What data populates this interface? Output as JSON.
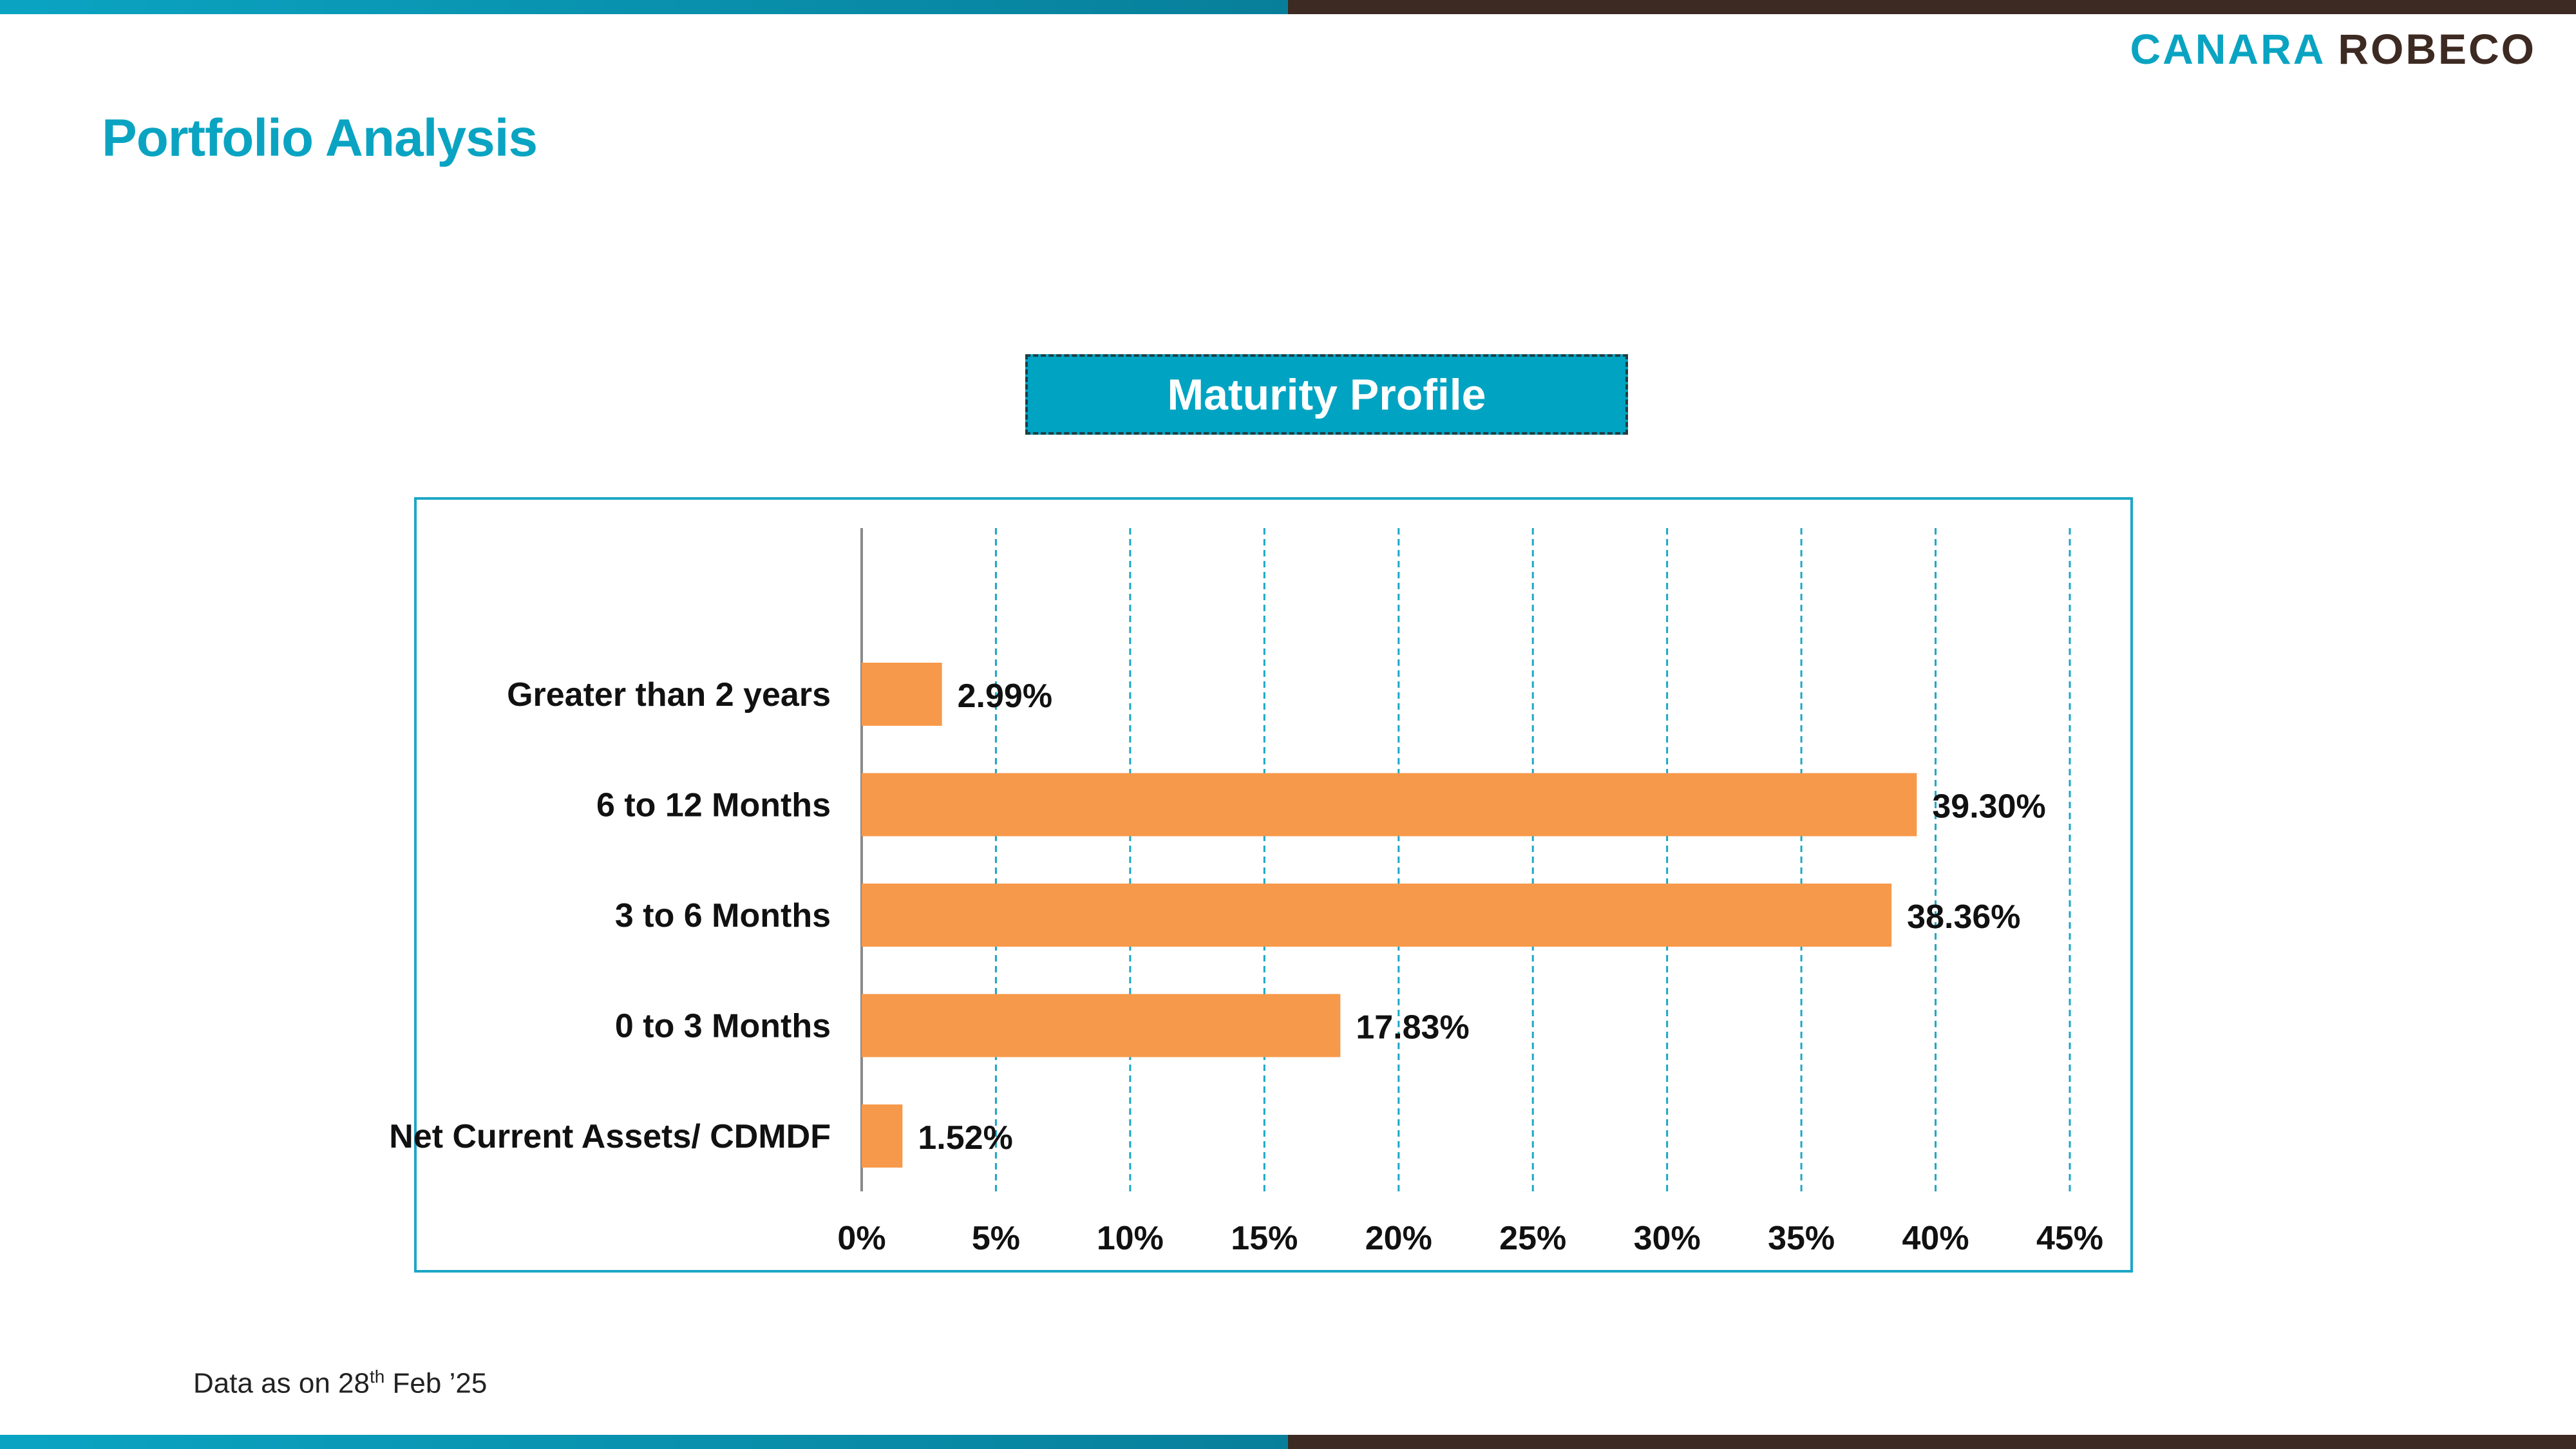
{
  "header": {
    "logo_part1": "CANARA",
    "logo_part2": "ROBECO",
    "page_title": "Portfolio Analysis"
  },
  "colors": {
    "accent_teal": "#0aa4c2",
    "brand_brown": "#3d2a22",
    "bar_orange": "#f7994a",
    "grid_teal": "#1ba7c6"
  },
  "footnote": {
    "prefix": "Data as on 28",
    "superscript": "th",
    "suffix": " Feb  ’25"
  },
  "chart_data": {
    "type": "bar",
    "orientation": "horizontal",
    "title": "Maturity Profile",
    "categories": [
      "Greater than 2 years",
      "6 to 12 Months",
      "3 to 6 Months",
      "0 to 3 Months",
      "Net Current Assets/ CDMDF"
    ],
    "values": [
      2.99,
      39.3,
      38.36,
      17.83,
      1.52
    ],
    "value_labels": [
      "2.99%",
      "39.30%",
      "38.36%",
      "17.83%",
      "1.52%"
    ],
    "xlim": [
      0,
      45
    ],
    "xticks": [
      0,
      5,
      10,
      15,
      20,
      25,
      30,
      35,
      40,
      45
    ],
    "xtick_labels": [
      "0%",
      "5%",
      "10%",
      "15%",
      "20%",
      "25%",
      "30%",
      "35%",
      "40%",
      "45%"
    ],
    "grid": "vertical dashed",
    "legend": "none",
    "xlabel": "",
    "ylabel": ""
  }
}
